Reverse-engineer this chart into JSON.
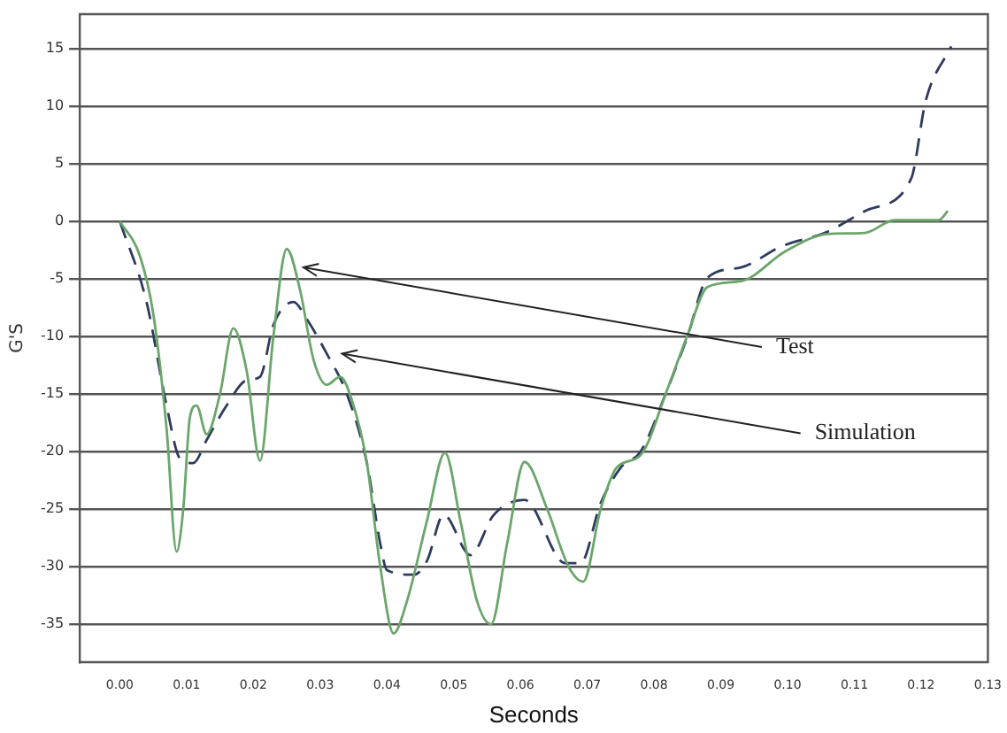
{
  "chart_data": {
    "type": "line",
    "xlabel": "Seconds",
    "ylabel": "G'S",
    "xlim": [
      -0.006,
      0.13
    ],
    "ylim": [
      -38.3,
      18
    ],
    "xticks": [
      {
        "value": 0,
        "label": "0.00"
      },
      {
        "value": 0.01,
        "label": "0.01"
      },
      {
        "value": 0.02,
        "label": "0.02"
      },
      {
        "value": 0.03,
        "label": "0.03"
      },
      {
        "value": 0.04,
        "label": "0.04"
      },
      {
        "value": 0.05,
        "label": "0.05"
      },
      {
        "value": 0.06,
        "label": "0.06"
      },
      {
        "value": 0.07,
        "label": "0.07"
      },
      {
        "value": 0.08,
        "label": "0.08"
      },
      {
        "value": 0.09,
        "label": "0.09"
      },
      {
        "value": 0.1,
        "label": "0.10"
      },
      {
        "value": 0.11,
        "label": "0.11"
      },
      {
        "value": 0.12,
        "label": "0.12"
      },
      {
        "value": 0.13,
        "label": "0.13"
      }
    ],
    "yticks": [
      -35,
      -30,
      -25,
      -20,
      -15,
      -10,
      -5,
      0,
      5,
      10,
      15
    ],
    "grid": "y",
    "legend": false,
    "marker": "none",
    "series": [
      {
        "color": "#6aa56a",
        "line_style": "solid",
        "x": [
          0,
          0.003,
          0.005,
          0.007,
          0.0085,
          0.0095,
          0.0105,
          0.0115,
          0.013,
          0.015,
          0.017,
          0.019,
          0.021,
          0.023,
          0.025,
          0.027,
          0.029,
          0.031,
          0.033,
          0.035,
          0.037,
          0.039,
          0.041,
          0.043,
          0.046,
          0.0487,
          0.051,
          0.0535,
          0.0556,
          0.058,
          0.0606,
          0.064,
          0.0672,
          0.0694,
          0.072,
          0.0744,
          0.078,
          0.082,
          0.085,
          0.088,
          0.093,
          0.0997,
          0.106,
          0.1116,
          0.116,
          0.1226,
          0.124
        ],
        "values": [
          0,
          -3,
          -8,
          -18,
          -28.7,
          -25,
          -17,
          -16,
          -18.5,
          -15,
          -9.3,
          -13,
          -20.8,
          -10,
          -2.4,
          -6,
          -12,
          -14.2,
          -13.5,
          -16,
          -21,
          -30,
          -35.8,
          -33,
          -26,
          -20.1,
          -26,
          -33,
          -35,
          -28,
          -20.9,
          -25,
          -30,
          -31.3,
          -25,
          -21.4,
          -20.3,
          -14.6,
          -9.9,
          -5.7,
          -5.2,
          -2.6,
          -1.1,
          -1,
          0.1,
          0.1,
          0.9
        ]
      },
      {
        "color": "#2e3a5e",
        "line_style": "dashed",
        "x": [
          0,
          0.004,
          0.007,
          0.009,
          0.011,
          0.013,
          0.016,
          0.019,
          0.021,
          0.023,
          0.026,
          0.028,
          0.031,
          0.034,
          0.037,
          0.039,
          0.04,
          0.044,
          0.046,
          0.0485,
          0.0525,
          0.056,
          0.0606,
          0.0667,
          0.069,
          0.072,
          0.075,
          0.078,
          0.082,
          0.085,
          0.088,
          0.093,
          0.099,
          0.106,
          0.112,
          0.1185,
          0.1207,
          0.1245
        ],
        "values": [
          0,
          -7,
          -16,
          -20.6,
          -21,
          -19,
          -16,
          -13.8,
          -13.5,
          -9,
          -7,
          -8.5,
          -11.5,
          -15,
          -21,
          -28,
          -30.3,
          -30.7,
          -29.5,
          -25.5,
          -29,
          -25.5,
          -24.2,
          -29.7,
          -29.7,
          -24.5,
          -21.4,
          -20,
          -14.6,
          -10,
          -4.9,
          -4,
          -2.2,
          -0.9,
          1,
          3.7,
          10.5,
          15.2
        ]
      }
    ],
    "annotations": [
      {
        "text": "Test",
        "x": 0.0267,
        "y": -4
      },
      {
        "text": "Simulation",
        "x": 0.0325,
        "y": -11.5
      }
    ]
  }
}
